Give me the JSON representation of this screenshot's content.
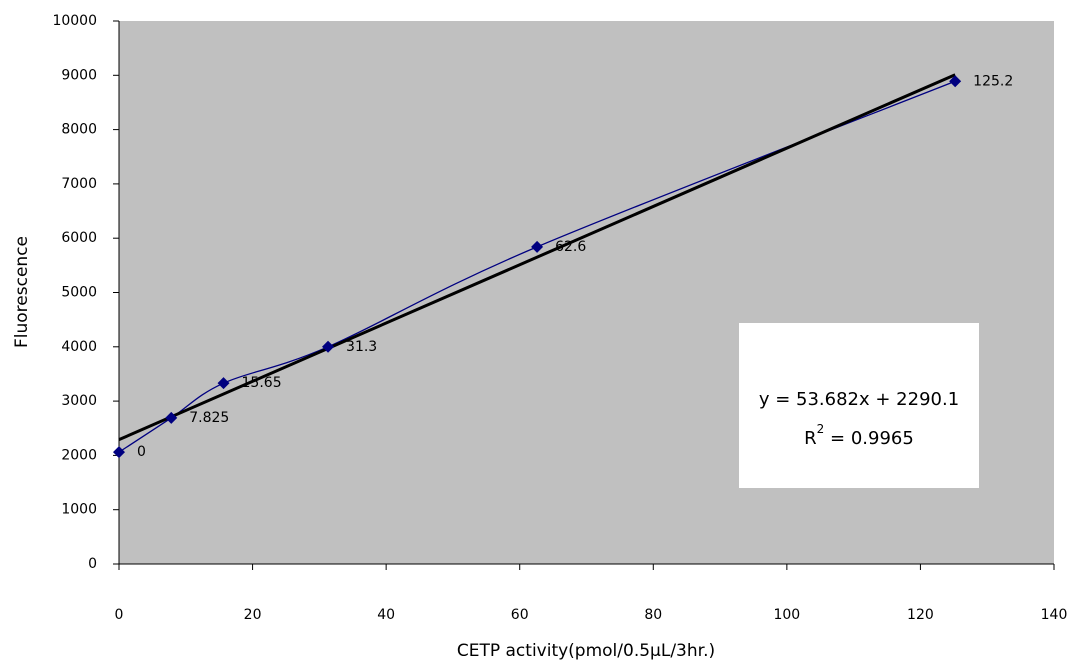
{
  "chart_data": {
    "type": "scatter",
    "x_label": "CETP activity(pmol/0.5μL/3hr.)",
    "y_label": "Fluorescence",
    "x": [
      0,
      7.825,
      15.65,
      31.3,
      62.6,
      125.2
    ],
    "values": [
      2060,
      2690,
      3330,
      4000,
      5840,
      8890
    ],
    "color": "#000080",
    "xlim": [
      0,
      140
    ],
    "xticks": [
      0,
      20,
      40,
      60,
      80,
      100,
      120,
      140
    ],
    "ylim": [
      0,
      10000
    ],
    "yticks": [
      0,
      1000,
      2000,
      3000,
      4000,
      5000,
      6000,
      7000,
      8000,
      9000,
      10000
    ],
    "trendline": {
      "slope": 53.682,
      "intercept": 2290.1,
      "color": "#000000",
      "equation": "y = 53.682x + 2290.1",
      "r2_symbol": "R",
      "r2_exponent": "2",
      "r2_value": " = 0.9965"
    },
    "plot_background": "#c0c0c0"
  }
}
